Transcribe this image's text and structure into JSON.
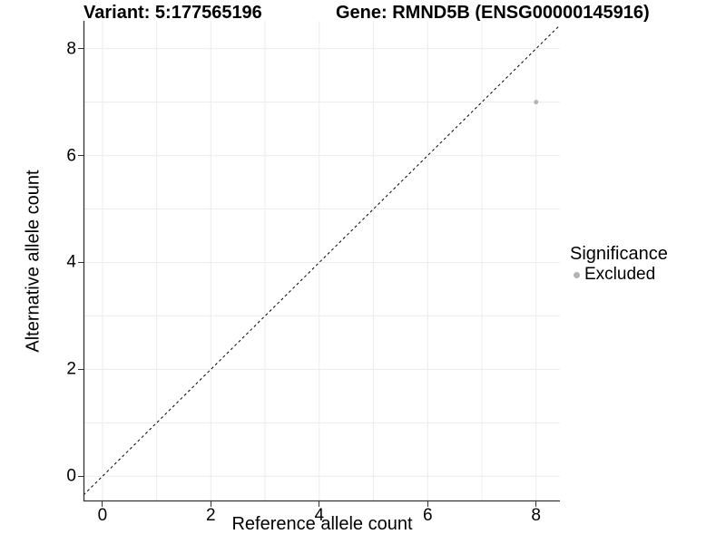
{
  "chart_data": {
    "type": "scatter",
    "titles": {
      "left": "Variant: 5:177565196",
      "right": "Gene: RMND5B (ENSG00000145916)"
    },
    "xlabel": "Reference allele count",
    "ylabel": "Alternative allele count",
    "xlim": [
      -0.35,
      8.44
    ],
    "ylim": [
      -0.47,
      8.52
    ],
    "xticks": [
      0,
      2,
      4,
      6,
      8
    ],
    "yticks": [
      0,
      2,
      4,
      6,
      8
    ],
    "grid": {
      "show": true,
      "interval": 1,
      "color": "#ececec"
    },
    "identity_line": {
      "show": true,
      "style": "dashed",
      "color": "#000000"
    },
    "series": [
      {
        "name": "Excluded",
        "color": "#b3b3b3",
        "points": [
          {
            "x": 8,
            "y": 7
          }
        ]
      }
    ],
    "legend": {
      "title": "Significance",
      "position": "right",
      "items": [
        {
          "label": "Excluded",
          "color": "#b3b3b3"
        }
      ]
    },
    "axis_color": "#333333",
    "point_radius": 2.5
  }
}
